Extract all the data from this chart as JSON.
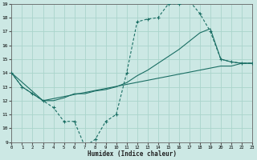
{
  "xlabel": "Humidex (Indice chaleur)",
  "bg_color": "#cce8e4",
  "grid_color": "#aad4cc",
  "line_color": "#1a6e64",
  "xlim": [
    0,
    23
  ],
  "ylim": [
    9,
    19
  ],
  "yticks": [
    9,
    10,
    11,
    12,
    13,
    14,
    15,
    16,
    17,
    18,
    19
  ],
  "xticks": [
    0,
    1,
    2,
    3,
    4,
    5,
    6,
    7,
    8,
    9,
    10,
    11,
    12,
    13,
    14,
    15,
    16,
    17,
    18,
    19,
    20,
    21,
    22,
    23
  ],
  "line_marked_x": [
    0,
    1,
    2,
    3,
    4,
    5,
    6,
    7,
    8,
    9,
    10,
    11,
    12,
    13,
    14,
    15,
    16,
    17,
    18,
    19,
    20,
    21,
    22,
    23
  ],
  "line_marked_y": [
    14,
    13,
    12.5,
    12,
    11.5,
    10.5,
    10.5,
    8.7,
    9.2,
    10.5,
    11,
    14,
    17.7,
    17.9,
    18,
    19,
    19,
    19.2,
    18.3,
    17,
    15,
    14.8,
    14.7,
    14.7
  ],
  "line_solid1_x": [
    0,
    1,
    2,
    3,
    4,
    5,
    6,
    7,
    8,
    9,
    10,
    11,
    12,
    13,
    14,
    15,
    16,
    17,
    18,
    19,
    20,
    21,
    22,
    23
  ],
  "line_solid1_y": [
    14,
    13,
    12.5,
    12,
    12,
    12.2,
    12.5,
    12.5,
    12.7,
    12.8,
    13,
    13.3,
    13.8,
    14.2,
    14.7,
    15.2,
    15.7,
    16.3,
    16.9,
    17.2,
    15,
    14.8,
    14.7,
    14.7
  ],
  "line_solid2_x": [
    0,
    3,
    20,
    21,
    22,
    23
  ],
  "line_solid2_y": [
    14,
    12,
    14.5,
    14.5,
    14.7,
    14.7
  ]
}
